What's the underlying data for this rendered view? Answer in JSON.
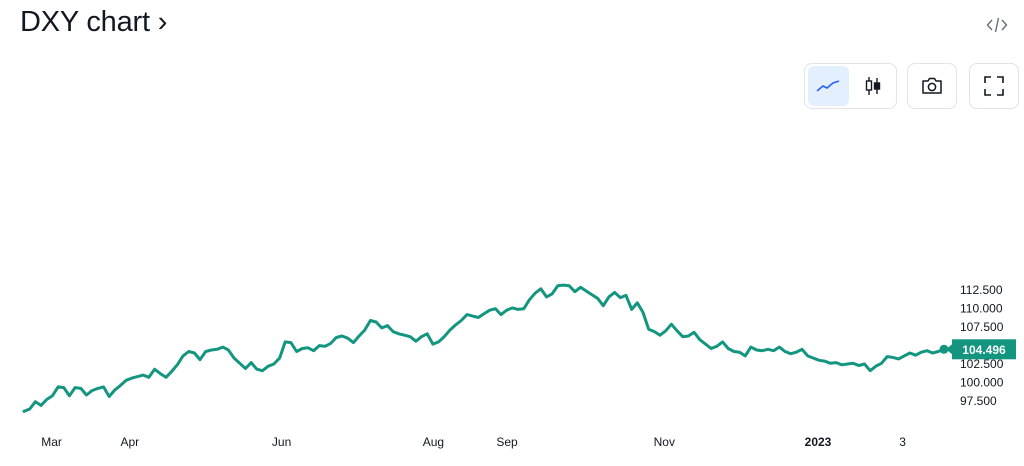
{
  "header": {
    "title": "DXY chart ›",
    "embed_icon": "code-icon"
  },
  "toolbar": {
    "line_icon": "line-chart-icon",
    "candles_icon": "candlestick-icon",
    "snapshot_icon": "camera-icon",
    "fullscreen_icon": "fullscreen-icon",
    "active": "line"
  },
  "colors": {
    "line": "#139580",
    "price_badge_bg": "#139580",
    "axis_text": "#131722",
    "active_button_bg": "#e3effd",
    "active_icon": "#2962ff"
  },
  "chart_data": {
    "type": "line",
    "series": [
      {
        "values": [
          96.1,
          96.4,
          97.4,
          96.9,
          97.7,
          98.2,
          99.4,
          99.3,
          98.2,
          99.3,
          99.2,
          98.3,
          98.9,
          99.2,
          99.4,
          98.1,
          99.0,
          99.6,
          100.3,
          100.6,
          100.8,
          101.0,
          100.7,
          101.8,
          101.2,
          100.7,
          101.5,
          102.4,
          103.6,
          104.2,
          104.0,
          103.1,
          104.2,
          104.4,
          104.5,
          104.8,
          104.4,
          103.3,
          102.6,
          101.9,
          102.7,
          101.8,
          101.6,
          102.2,
          102.5,
          103.3,
          105.5,
          105.4,
          104.2,
          104.6,
          104.7,
          104.3,
          105.0,
          104.9,
          105.3,
          106.1,
          106.3,
          106.0,
          105.4,
          106.3,
          107.1,
          108.4,
          108.2,
          107.4,
          107.7,
          106.9,
          106.6,
          106.4,
          106.2,
          105.6,
          106.2,
          106.6,
          105.2,
          105.5,
          106.2,
          107.1,
          107.8,
          108.4,
          109.2,
          109.0,
          108.8,
          109.3,
          109.8,
          110.0,
          109.2,
          109.8,
          110.1,
          109.9,
          110.0,
          111.2,
          112.1,
          112.7,
          111.6,
          112.0,
          113.1,
          113.2,
          113.1,
          112.3,
          112.9,
          112.4,
          111.9,
          111.4,
          110.4,
          111.6,
          112.2,
          111.5,
          111.8,
          109.9,
          110.8,
          109.5,
          107.2,
          106.9,
          106.4,
          107.0,
          107.9,
          107.0,
          106.2,
          106.3,
          106.8,
          105.8,
          105.2,
          104.6,
          104.9,
          105.5,
          104.6,
          104.2,
          104.1,
          103.6,
          104.8,
          104.4,
          104.3,
          104.5,
          104.3,
          104.8,
          104.2,
          103.9,
          104.1,
          104.5,
          103.6,
          103.3,
          103.0,
          102.9,
          102.6,
          102.7,
          102.4,
          102.5,
          102.6,
          102.3,
          102.5,
          101.6,
          102.2,
          102.6,
          103.5,
          103.4,
          103.2,
          103.6,
          104.0,
          103.7,
          104.1,
          104.3,
          104.0,
          104.2,
          104.5
        ],
        "last_value": "104.496"
      }
    ],
    "x_ticks": [
      {
        "label": "Mar",
        "t": 0.03
      },
      {
        "label": "Apr",
        "t": 0.115
      },
      {
        "label": "Jun",
        "t": 0.28
      },
      {
        "label": "Aug",
        "t": 0.445
      },
      {
        "label": "Sep",
        "t": 0.525
      },
      {
        "label": "Nov",
        "t": 0.696
      },
      {
        "label": "2023",
        "t": 0.863
      },
      {
        "label": "3",
        "t": 0.955
      }
    ],
    "y_ticks": [
      "112.500",
      "110.000",
      "107.500",
      "105.000",
      "102.500",
      "100.000",
      "97.500"
    ],
    "ylim": [
      95.5,
      114.5
    ],
    "grid": false
  }
}
